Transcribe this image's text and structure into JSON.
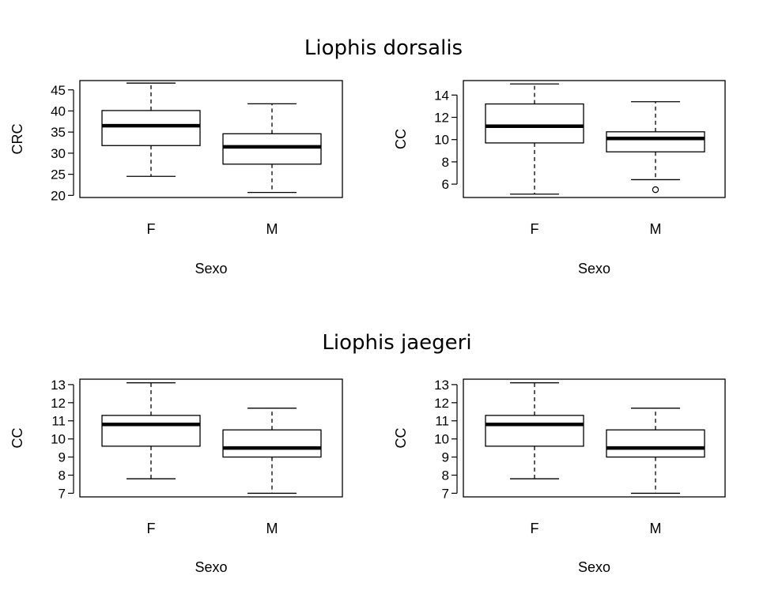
{
  "titles": {
    "top": "Liophis dorsalis",
    "bottom": "Liophis jaegeri"
  },
  "chart_data": [
    {
      "type": "boxplot",
      "group_title": "Liophis dorsalis",
      "xlabel": "Sexo",
      "ylabel": "CRC",
      "categories": [
        "F",
        "M"
      ],
      "yticks": [
        20,
        25,
        30,
        35,
        40,
        45
      ],
      "ylim": [
        19.5,
        47.2
      ],
      "boxes": [
        {
          "category": "F",
          "min": 24.5,
          "q1": 31.8,
          "median": 36.5,
          "q3": 40.1,
          "max": 46.6,
          "outliers": []
        },
        {
          "category": "M",
          "min": 20.7,
          "q1": 27.4,
          "median": 31.5,
          "q3": 34.6,
          "max": 41.7,
          "outliers": []
        }
      ]
    },
    {
      "type": "boxplot",
      "group_title": "Liophis dorsalis",
      "xlabel": "Sexo",
      "ylabel": "CC",
      "categories": [
        "F",
        "M"
      ],
      "yticks": [
        6,
        8,
        10,
        12,
        14
      ],
      "ylim": [
        4.8,
        15.3
      ],
      "boxes": [
        {
          "category": "F",
          "min": 5.1,
          "q1": 9.7,
          "median": 11.2,
          "q3": 13.2,
          "max": 15.0,
          "outliers": []
        },
        {
          "category": "M",
          "min": 6.4,
          "q1": 8.9,
          "median": 10.1,
          "q3": 10.7,
          "max": 13.4,
          "outliers": [
            5.5
          ]
        }
      ]
    },
    {
      "type": "boxplot",
      "group_title": "Liophis jaegeri",
      "xlabel": "Sexo",
      "ylabel": "CC",
      "categories": [
        "F",
        "M"
      ],
      "yticks": [
        7,
        8,
        9,
        10,
        11,
        12,
        13
      ],
      "ylim": [
        6.8,
        13.3
      ],
      "boxes": [
        {
          "category": "F",
          "min": 7.8,
          "q1": 9.6,
          "median": 10.8,
          "q3": 11.3,
          "max": 13.1,
          "outliers": []
        },
        {
          "category": "M",
          "min": 7.0,
          "q1": 9.0,
          "median": 9.5,
          "q3": 10.5,
          "max": 11.7,
          "outliers": []
        }
      ]
    },
    {
      "type": "boxplot",
      "group_title": "Liophis jaegeri",
      "xlabel": "Sexo",
      "ylabel": "CC",
      "categories": [
        "F",
        "M"
      ],
      "yticks": [
        7,
        8,
        9,
        10,
        11,
        12,
        13
      ],
      "ylim": [
        6.8,
        13.3
      ],
      "boxes": [
        {
          "category": "F",
          "min": 7.8,
          "q1": 9.6,
          "median": 10.8,
          "q3": 11.3,
          "max": 13.1,
          "outliers": []
        },
        {
          "category": "M",
          "min": 7.0,
          "q1": 9.0,
          "median": 9.5,
          "q3": 10.5,
          "max": 11.7,
          "outliers": []
        }
      ]
    }
  ]
}
